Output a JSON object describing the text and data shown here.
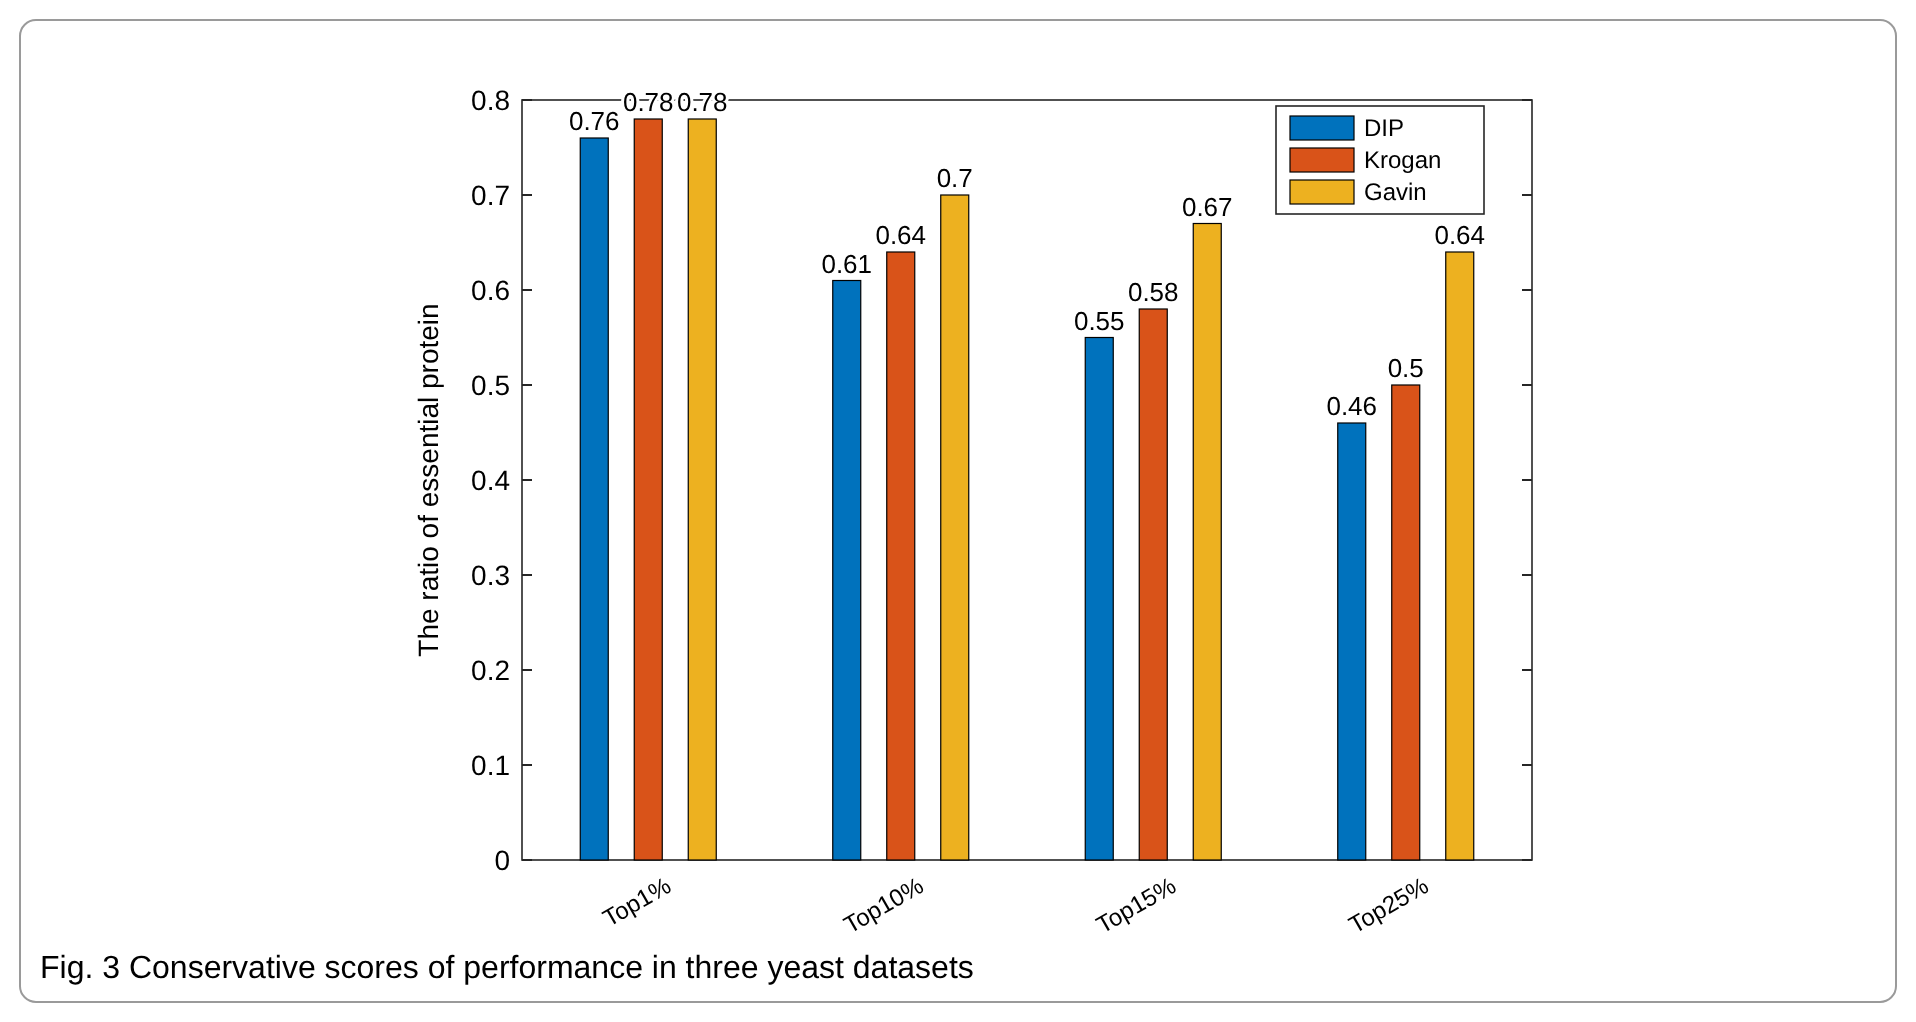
{
  "chart_data": {
    "type": "bar",
    "ylabel": "The ratio of essential protein",
    "categories": [
      "Top1%",
      "Top10%",
      "Top15%",
      "Top25%"
    ],
    "series": [
      {
        "name": "DIP",
        "color": "#0072bd",
        "values": [
          0.76,
          0.61,
          0.55,
          0.46
        ]
      },
      {
        "name": "Krogan",
        "color": "#d95319",
        "values": [
          0.78,
          0.64,
          0.58,
          0.5
        ]
      },
      {
        "name": "Gavin",
        "color": "#edb120",
        "values": [
          0.78,
          0.7,
          0.67,
          0.64
        ]
      }
    ],
    "ylim": [
      0,
      0.8
    ],
    "yticks": [
      0,
      0.1,
      0.2,
      0.3,
      0.4,
      0.5,
      0.6,
      0.7,
      0.8
    ],
    "data_labels": true,
    "legend": "top right",
    "grid": false,
    "annotations": [
      "Fig. 3  Conservative scores of performance in three yeast datasets"
    ]
  }
}
